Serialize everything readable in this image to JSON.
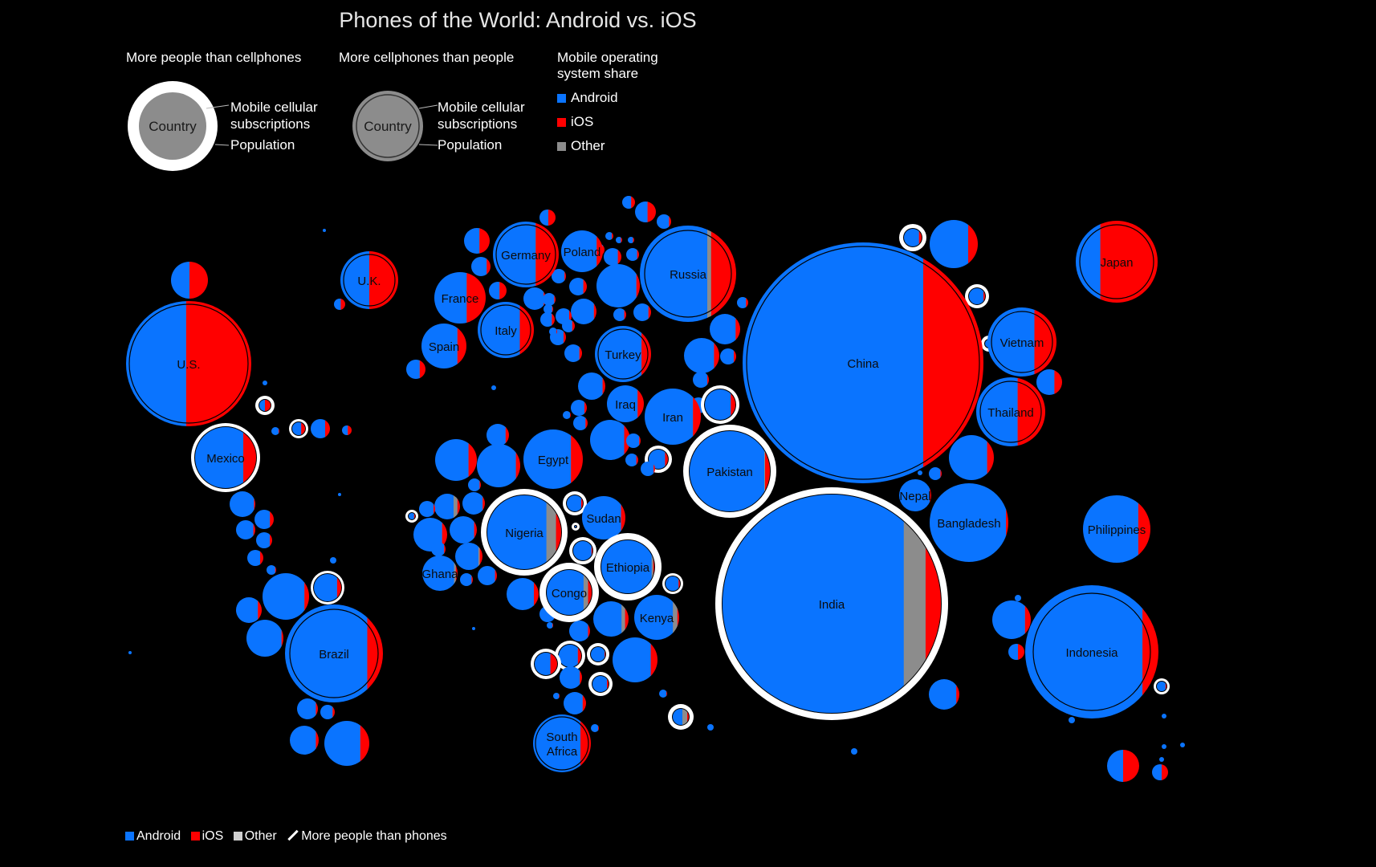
{
  "title": "Phones of the World: Android vs. iOS",
  "legend": {
    "group1_title": "More people than cellphones",
    "group2_title": "More cellphones than people",
    "example_country": "Country",
    "label_subscriptions": "Mobile cellular subscriptions",
    "label_population": "Population",
    "share_title": "Mobile operating system share",
    "share_items": [
      "Android",
      "iOS",
      "Other"
    ]
  },
  "bottom_legend": {
    "android": "Android",
    "ios": "iOS",
    "other": "Other",
    "more_people": "More people than phones"
  },
  "colors": {
    "android": "#0a74ff",
    "ios": "#ff0000",
    "other": "#8c8c8c",
    "background": "#000000",
    "population_ring": "#ffffff"
  },
  "chart_data": {
    "type": "bubble-map",
    "series": [
      "Android",
      "iOS",
      "Other"
    ],
    "labeled_countries": [
      {
        "name": "U.S.",
        "android": 0.48,
        "ios": 0.52,
        "other": 0.0,
        "more_people_than_phones": false
      },
      {
        "name": "Mexico",
        "android": 0.79,
        "ios": 0.21,
        "other": 0.0,
        "more_people_than_phones": true
      },
      {
        "name": "Brazil",
        "android": 0.84,
        "ios": 0.16,
        "other": 0.0,
        "more_people_than_phones": false
      },
      {
        "name": "U.K.",
        "android": 0.5,
        "ios": 0.5,
        "other": 0.0,
        "more_people_than_phones": false
      },
      {
        "name": "France",
        "android": 0.63,
        "ios": 0.37,
        "other": 0.0,
        "more_people_than_phones": false
      },
      {
        "name": "Spain",
        "android": 0.8,
        "ios": 0.2,
        "other": 0.0,
        "more_people_than_phones": false
      },
      {
        "name": "Germany",
        "android": 0.65,
        "ios": 0.35,
        "other": 0.0,
        "more_people_than_phones": false
      },
      {
        "name": "Italy",
        "android": 0.75,
        "ios": 0.25,
        "other": 0.0,
        "more_people_than_phones": false
      },
      {
        "name": "Poland",
        "android": 0.85,
        "ios": 0.15,
        "other": 0.0,
        "more_people_than_phones": false
      },
      {
        "name": "Russia",
        "android": 0.7,
        "ios": 0.26,
        "other": 0.04,
        "more_people_than_phones": false
      },
      {
        "name": "Turkey",
        "android": 0.83,
        "ios": 0.17,
        "other": 0.0,
        "more_people_than_phones": false
      },
      {
        "name": "Iraq",
        "android": 0.83,
        "ios": 0.17,
        "other": 0.0,
        "more_people_than_phones": false
      },
      {
        "name": "Iran",
        "android": 0.86,
        "ios": 0.14,
        "other": 0.0,
        "more_people_than_phones": false
      },
      {
        "name": "Egypt",
        "android": 0.8,
        "ios": 0.2,
        "other": 0.0,
        "more_people_than_phones": false
      },
      {
        "name": "Nigeria",
        "android": 0.8,
        "ios": 0.07,
        "other": 0.13,
        "more_people_than_phones": true
      },
      {
        "name": "Sudan",
        "android": 0.9,
        "ios": 0.1,
        "other": 0.0,
        "more_people_than_phones": false
      },
      {
        "name": "Ghana",
        "android": 0.9,
        "ios": 0.05,
        "other": 0.05,
        "more_people_than_phones": false
      },
      {
        "name": "Ethiopia",
        "android": 0.95,
        "ios": 0.02,
        "other": 0.03,
        "more_people_than_phones": true
      },
      {
        "name": "Congo",
        "android": 0.82,
        "ios": 0.08,
        "other": 0.1,
        "more_people_than_phones": true
      },
      {
        "name": "Kenya",
        "android": 0.86,
        "ios": 0.04,
        "other": 0.1,
        "more_people_than_phones": false
      },
      {
        "name": "South Africa",
        "android": 0.82,
        "ios": 0.18,
        "other": 0.0,
        "more_people_than_phones": false
      },
      {
        "name": "Pakistan",
        "android": 0.93,
        "ios": 0.06,
        "other": 0.01,
        "more_people_than_phones": true
      },
      {
        "name": "India",
        "android": 0.83,
        "ios": 0.07,
        "other": 0.1,
        "more_people_than_phones": true
      },
      {
        "name": "China",
        "android": 0.75,
        "ios": 0.25,
        "other": 0.0,
        "more_people_than_phones": false
      },
      {
        "name": "Nepal",
        "android": 0.95,
        "ios": 0.05,
        "other": 0.0,
        "more_people_than_phones": false
      },
      {
        "name": "Bangladesh",
        "android": 0.97,
        "ios": 0.03,
        "other": 0.0,
        "more_people_than_phones": false
      },
      {
        "name": "Japan",
        "android": 0.3,
        "ios": 0.7,
        "other": 0.0,
        "more_people_than_phones": false
      },
      {
        "name": "Vietnam",
        "android": 0.68,
        "ios": 0.32,
        "other": 0.0,
        "more_people_than_phones": false
      },
      {
        "name": "Thailand",
        "android": 0.6,
        "ios": 0.4,
        "other": 0.0,
        "more_people_than_phones": false
      },
      {
        "name": "Philippines",
        "android": 0.82,
        "ios": 0.18,
        "other": 0.0,
        "more_people_than_phones": false
      },
      {
        "name": "Indonesia",
        "android": 0.88,
        "ios": 0.12,
        "other": 0.0,
        "more_people_than_phones": false
      }
    ]
  }
}
